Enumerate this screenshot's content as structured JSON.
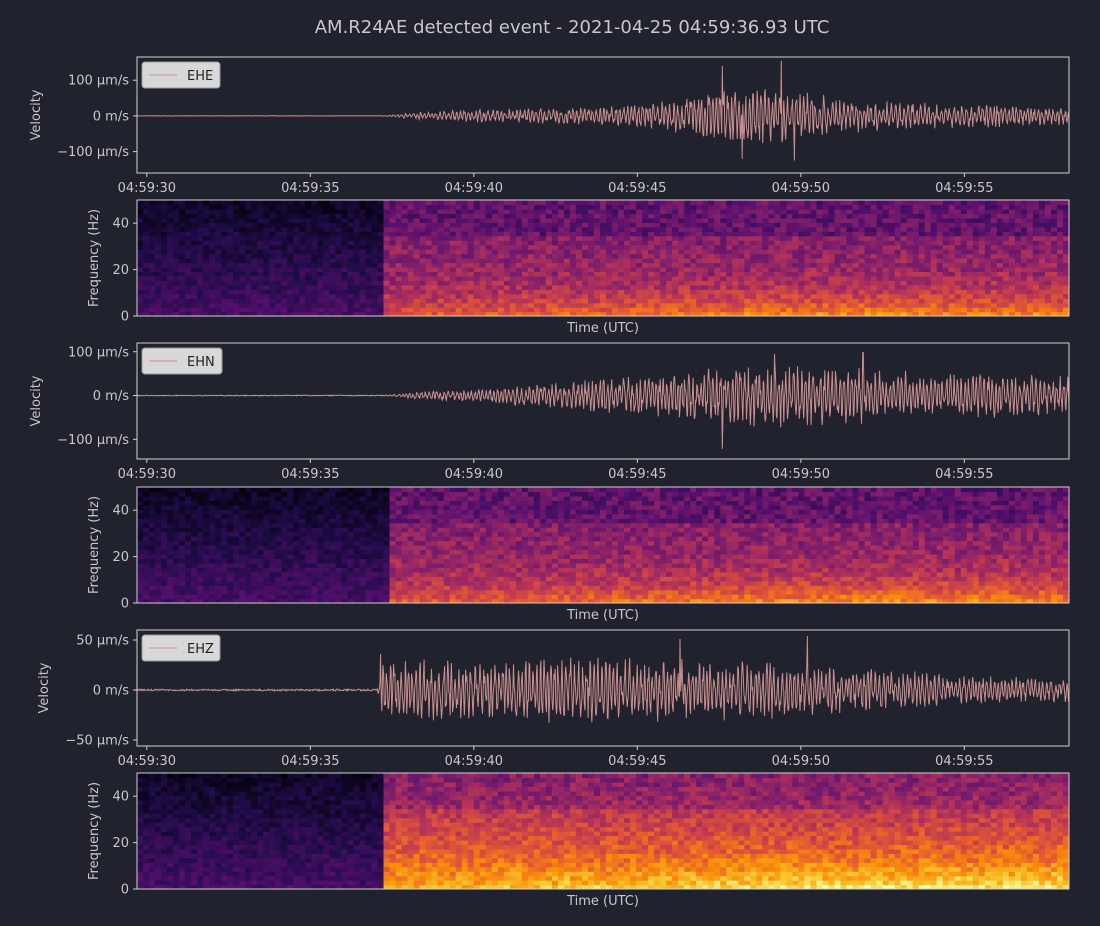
{
  "figure": {
    "title": "AM.R24AE detected event - 2021-04-25 04:59:36.93 UTC",
    "background": "#20232d",
    "trace_color": "#c98e8e"
  },
  "chart_data": [
    {
      "type": "line",
      "channel": "EHE",
      "legend": "EHE",
      "ylabel": "Velocity",
      "yticks": [
        {
          "value": 100,
          "label": "100 µm/s"
        },
        {
          "value": 0,
          "label": "0 m/s"
        },
        {
          "value": -100,
          "label": "−100 µm/s"
        }
      ],
      "ylim": [
        -160,
        165
      ],
      "xlim": [
        29.7,
        58.2
      ],
      "xticks": [
        {
          "value": 30,
          "label": "04:59:30"
        },
        {
          "value": 35,
          "label": "04:59:35"
        },
        {
          "value": 40,
          "label": "04:59:40"
        },
        {
          "value": 45,
          "label": "04:59:45"
        },
        {
          "value": 50,
          "label": "04:59:50"
        },
        {
          "value": 55,
          "label": "04:59:55"
        }
      ],
      "onset": 37.2,
      "envelope": [
        [
          29.7,
          0.5
        ],
        [
          37.2,
          0.5
        ],
        [
          38.5,
          12
        ],
        [
          40,
          18
        ],
        [
          42,
          22
        ],
        [
          44,
          28
        ],
        [
          46,
          45
        ],
        [
          47.5,
          75
        ],
        [
          49.5,
          85
        ],
        [
          51,
          55
        ],
        [
          53,
          40
        ],
        [
          55,
          35
        ],
        [
          58.2,
          28
        ]
      ],
      "peaks": [
        {
          "x": 47.6,
          "y": 140
        },
        {
          "x": 48.2,
          "y": -120
        },
        {
          "x": 49.4,
          "y": 155
        },
        {
          "x": 49.8,
          "y": -125
        }
      ]
    },
    {
      "type": "heatmap",
      "channel": "EHE",
      "ylabel": "Frequency (Hz)",
      "xlabel": "Time (UTC)",
      "ylim": [
        0,
        50
      ],
      "yticks": [
        {
          "value": 0,
          "label": "0"
        },
        {
          "value": 20,
          "label": "20"
        },
        {
          "value": 40,
          "label": "40"
        }
      ],
      "xlim": [
        29.7,
        58.2
      ],
      "onset": 37.2,
      "colormap": "inferno"
    },
    {
      "type": "line",
      "channel": "EHN",
      "legend": "EHN",
      "ylabel": "Velocity",
      "yticks": [
        {
          "value": 100,
          "label": "100 µm/s"
        },
        {
          "value": 0,
          "label": "0 m/s"
        },
        {
          "value": -100,
          "label": "−100 µm/s"
        }
      ],
      "ylim": [
        -145,
        120
      ],
      "xlim": [
        29.7,
        58.2
      ],
      "xticks": [
        {
          "value": 30,
          "label": "04:59:30"
        },
        {
          "value": 35,
          "label": "04:59:35"
        },
        {
          "value": 40,
          "label": "04:59:40"
        },
        {
          "value": 45,
          "label": "04:59:45"
        },
        {
          "value": 50,
          "label": "04:59:50"
        },
        {
          "value": 55,
          "label": "04:59:55"
        }
      ],
      "onset": 37.3,
      "envelope": [
        [
          29.7,
          1
        ],
        [
          37.3,
          1
        ],
        [
          38.5,
          10
        ],
        [
          40,
          15
        ],
        [
          42,
          28
        ],
        [
          44,
          40
        ],
        [
          46,
          55
        ],
        [
          48,
          70
        ],
        [
          50,
          75
        ],
        [
          52,
          65
        ],
        [
          54,
          55
        ],
        [
          58.2,
          48
        ]
      ],
      "peaks": [
        {
          "x": 47.6,
          "y": -122
        },
        {
          "x": 49.2,
          "y": 95
        },
        {
          "x": 51.9,
          "y": 98
        }
      ]
    },
    {
      "type": "heatmap",
      "channel": "EHN",
      "ylabel": "Frequency (Hz)",
      "xlabel": "Time (UTC)",
      "ylim": [
        0,
        50
      ],
      "yticks": [
        {
          "value": 0,
          "label": "0"
        },
        {
          "value": 20,
          "label": "20"
        },
        {
          "value": 40,
          "label": "40"
        }
      ],
      "xlim": [
        29.7,
        58.2
      ],
      "onset": 37.3,
      "colormap": "inferno"
    },
    {
      "type": "line",
      "channel": "EHZ",
      "legend": "EHZ",
      "ylabel": "Velocity",
      "yticks": [
        {
          "value": 50,
          "label": "50 µm/s"
        },
        {
          "value": 0,
          "label": "0 m/s"
        },
        {
          "value": -50,
          "label": "−50 µm/s"
        }
      ],
      "ylim": [
        -56,
        60
      ],
      "xlim": [
        29.7,
        58.2
      ],
      "xticks": [
        {
          "value": 30,
          "label": "04:59:30"
        },
        {
          "value": 35,
          "label": "04:59:35"
        },
        {
          "value": 40,
          "label": "04:59:40"
        },
        {
          "value": 45,
          "label": "04:59:45"
        },
        {
          "value": 50,
          "label": "04:59:50"
        },
        {
          "value": 55,
          "label": "04:59:55"
        }
      ],
      "onset": 37.1,
      "envelope": [
        [
          29.7,
          0.8
        ],
        [
          37.05,
          0.8
        ],
        [
          37.2,
          32
        ],
        [
          40,
          30
        ],
        [
          43,
          35
        ],
        [
          46,
          33
        ],
        [
          49,
          30
        ],
        [
          51,
          25
        ],
        [
          53,
          20
        ],
        [
          55,
          15
        ],
        [
          58.2,
          12
        ]
      ],
      "peaks": [
        {
          "x": 37.15,
          "y": 36
        },
        {
          "x": 46.3,
          "y": 51
        },
        {
          "x": 50.2,
          "y": 54
        }
      ]
    },
    {
      "type": "heatmap",
      "channel": "EHZ",
      "ylabel": "Frequency (Hz)",
      "xlabel": "Time (UTC)",
      "ylim": [
        0,
        50
      ],
      "yticks": [
        {
          "value": 0,
          "label": "0"
        },
        {
          "value": 20,
          "label": "20"
        },
        {
          "value": 40,
          "label": "40"
        }
      ],
      "xlim": [
        29.7,
        58.2
      ],
      "onset": 37.1,
      "colormap": "inferno"
    }
  ]
}
